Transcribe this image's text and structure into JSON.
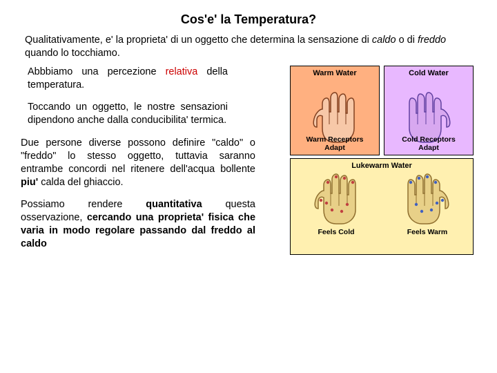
{
  "title": "Cos'e' la Temperatura?",
  "intro": "Qualitativamente, e' la proprieta' di un oggetto che determina la sensazione di <em>caldo</em> o di <em>freddo</em> quando lo tocchiamo.",
  "para1": "Abbbiamo una percezione <span class=\"relativa\">relativa</span> della temperatura.",
  "para2": "Toccando un oggetto, le nostre sensazioni dipendono anche dalla conducibilita' termica.",
  "para3": "Due persone diverse possono definire \"caldo\" o \"freddo\" lo stesso oggetto, tuttavia saranno entrambe concordi nel ritenere dell'acqua bollente <span class=\"bold\">piu'</span> calda del ghiaccio.",
  "para4": "Possiamo rendere <span class=\"bold\">quantitativa</span> questa osservazione, <span class=\"bold\">cercando una proprieta' fisica che varia in modo regolare passando dal freddo al caldo</span>",
  "panels": {
    "warm": {
      "top": "Warm Water",
      "bottom": "Warm Receptors\nAdapt",
      "bg": "#ffb080",
      "hand": "#f7c8a8",
      "outline": "#804020"
    },
    "cold": {
      "top": "Cold Water",
      "bottom": "Cold Receptors\nAdapt",
      "bg": "#e8b8ff",
      "hand": "#d8a8f0",
      "outline": "#6040a0"
    },
    "lukewarm": {
      "top": "Lukewarm Water",
      "bg": "#fff0b0",
      "left": {
        "bottom": "Feels Cold",
        "hand": "#e8d088",
        "outline": "#907030",
        "dots": "#c04040"
      },
      "right": {
        "bottom": "Feels Warm",
        "hand": "#e8d088",
        "outline": "#907030",
        "dots": "#4060c0"
      }
    }
  }
}
